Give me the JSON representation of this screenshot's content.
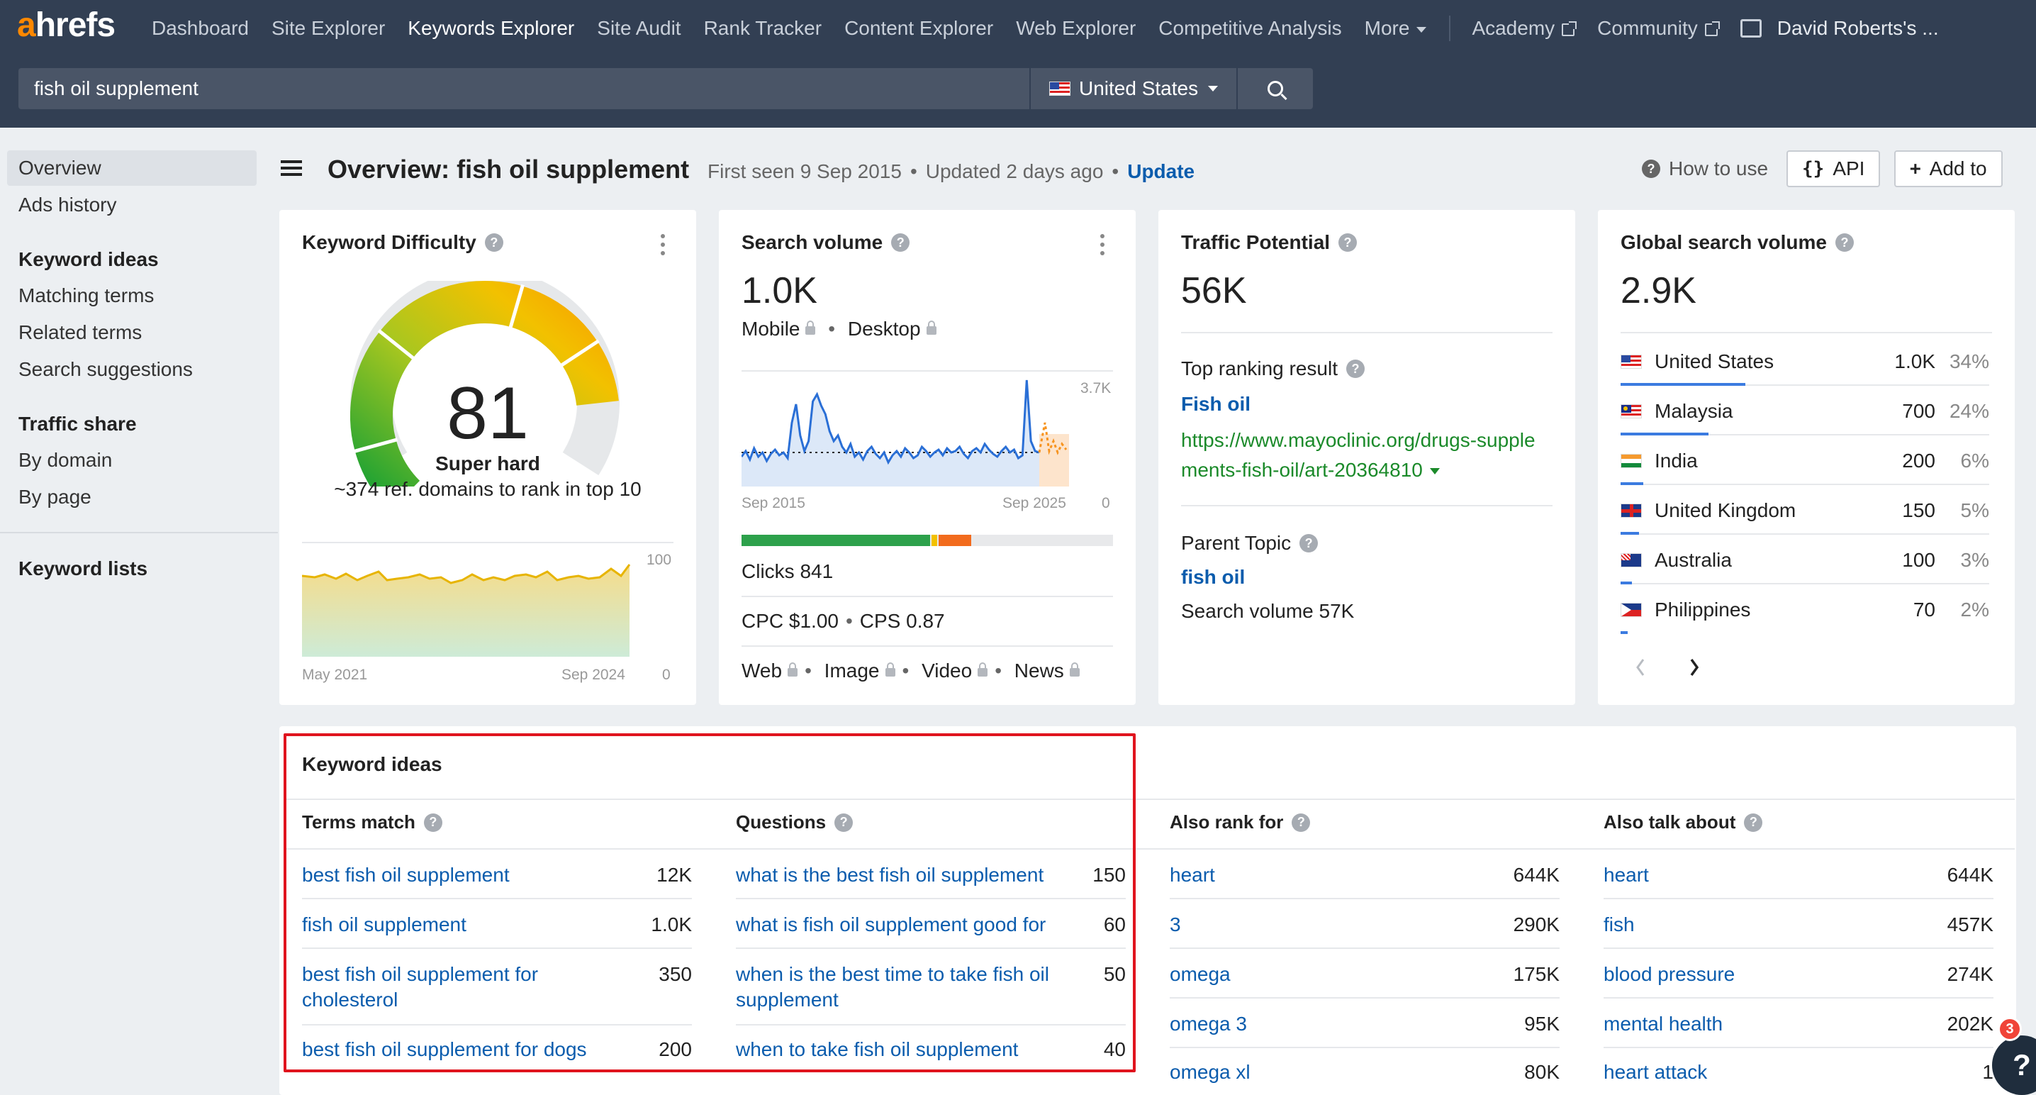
{
  "nav": {
    "logo_a": "a",
    "logo_rest": "hrefs",
    "items": [
      "Dashboard",
      "Site Explorer",
      "Keywords Explorer",
      "Site Audit",
      "Rank Tracker",
      "Content Explorer",
      "Web Explorer",
      "Competitive Analysis"
    ],
    "more": "More",
    "academy": "Academy",
    "community": "Community",
    "user": "David Roberts's ..."
  },
  "search": {
    "query": "fish oil supplement",
    "country": "United States"
  },
  "sidebar": {
    "overview": "Overview",
    "ads_history": "Ads history",
    "keyword_ideas": "Keyword ideas",
    "matching_terms": "Matching terms",
    "related_terms": "Related terms",
    "search_suggestions": "Search suggestions",
    "traffic_share": "Traffic share",
    "by_domain": "By domain",
    "by_page": "By page",
    "keyword_lists": "Keyword lists"
  },
  "header": {
    "title": "Overview: fish oil supplement",
    "first_seen": "First seen 9 Sep 2015",
    "updated": "Updated 2 days ago",
    "update_link": "Update",
    "how_to_use": "How to use",
    "api": "API",
    "add_to": "Add to"
  },
  "kd": {
    "title": "Keyword Difficulty",
    "score": "81",
    "label": "Super hard",
    "desc": "~374 ref. domains to rank in top 10",
    "axis_max": "100",
    "axis_min": "0",
    "date_start": "May 2021",
    "date_end": "Sep 2024",
    "color_easy": "#1aa134",
    "color_hard": "#f7a300"
  },
  "sv": {
    "title": "Search volume",
    "value": "1.0K",
    "mobile": "Mobile",
    "desktop": "Desktop",
    "axis_max": "3.7K",
    "axis_min": "0",
    "date_start": "Sep 2015",
    "date_end": "Sep 2025",
    "clicks": "Clicks 841",
    "cpc": "CPC $1.00",
    "cps": "CPS 0.87",
    "web": "Web",
    "image": "Image",
    "video": "Video",
    "news": "News"
  },
  "tp": {
    "title": "Traffic Potential",
    "value": "56K",
    "top_ranking_label": "Top ranking result",
    "top_title": "Fish oil",
    "top_url_1": "https://www.mayoclinic.org/drugs-supple",
    "top_url_2": "ments-fish-oil/art-20364810",
    "parent_label": "Parent Topic",
    "parent_kw": "fish oil",
    "parent_sv": "Search volume 57K"
  },
  "gsv": {
    "title": "Global search volume",
    "value": "2.9K",
    "countries": [
      {
        "name": "United States",
        "vol": "1.0K",
        "pct": "34%"
      },
      {
        "name": "Malaysia",
        "vol": "700",
        "pct": "24%"
      },
      {
        "name": "India",
        "vol": "200",
        "pct": "6%"
      },
      {
        "name": "United Kingdom",
        "vol": "150",
        "pct": "5%"
      },
      {
        "name": "Australia",
        "vol": "100",
        "pct": "3%"
      },
      {
        "name": "Philippines",
        "vol": "70",
        "pct": "2%"
      }
    ]
  },
  "ideas": {
    "title": "Keyword ideas",
    "terms_match": "Terms match",
    "questions": "Questions",
    "also_rank": "Also rank for",
    "also_talk": "Also talk about",
    "terms": [
      {
        "kw": "best fish oil supplement",
        "v": "12K"
      },
      {
        "kw": "fish oil supplement",
        "v": "1.0K"
      },
      {
        "kw": "best fish oil supplement for cholesterol",
        "v": "350"
      },
      {
        "kw": "best fish oil supplement for dogs",
        "v": "200"
      }
    ],
    "qs": [
      {
        "kw": "what is the best fish oil supplement",
        "v": "150"
      },
      {
        "kw": "what is fish oil supplement good for",
        "v": "60"
      },
      {
        "kw": "when is the best time to take fish oil supplement",
        "v": "50"
      },
      {
        "kw": "when to take fish oil supplement",
        "v": "40"
      }
    ],
    "rank": [
      {
        "kw": "heart",
        "v": "644K"
      },
      {
        "kw": "3",
        "v": "290K"
      },
      {
        "kw": "omega",
        "v": "175K"
      },
      {
        "kw": "omega 3",
        "v": "95K"
      },
      {
        "kw": "omega xl",
        "v": "80K"
      }
    ],
    "talk": [
      {
        "kw": "heart",
        "v": "644K"
      },
      {
        "kw": "fish",
        "v": "457K"
      },
      {
        "kw": "blood pressure",
        "v": "274K"
      },
      {
        "kw": "mental health",
        "v": "202K"
      },
      {
        "kw": "heart attack",
        "v": "1"
      }
    ]
  },
  "help": {
    "badge": "3",
    "label": "?"
  }
}
